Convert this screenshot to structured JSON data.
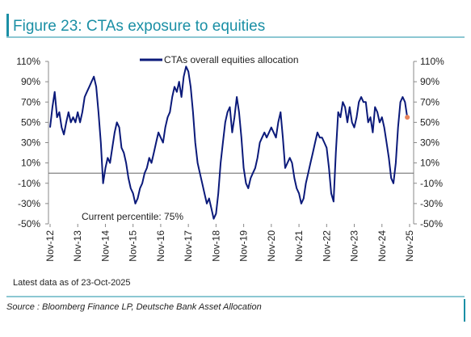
{
  "chart_data": {
    "type": "line",
    "title": "Figure 23: CTAs exposure to equities",
    "annotation": "Current percentile: 75%",
    "note": "Latest data as of 23-Oct-2025",
    "source": "Source : Bloomberg Finance LP, Deutsche Bank Asset Allocation",
    "categories": [
      "Nov-12",
      null,
      null,
      null,
      null,
      null,
      null,
      null,
      null,
      null,
      null,
      null,
      "Nov-13",
      null,
      null,
      null,
      null,
      null,
      null,
      null,
      null,
      null,
      null,
      null,
      "Nov-14",
      null,
      null,
      null,
      null,
      null,
      null,
      null,
      null,
      null,
      null,
      null,
      "Nov-15",
      null,
      null,
      null,
      null,
      null,
      null,
      null,
      null,
      null,
      null,
      null,
      "Nov-16",
      null,
      null,
      null,
      null,
      null,
      null,
      null,
      null,
      null,
      null,
      null,
      "Nov-17",
      null,
      null,
      null,
      null,
      null,
      null,
      null,
      null,
      null,
      null,
      null,
      "Nov-18",
      null,
      null,
      null,
      null,
      null,
      null,
      null,
      null,
      null,
      null,
      null,
      "Nov-19",
      null,
      null,
      null,
      null,
      null,
      null,
      null,
      null,
      null,
      null,
      null,
      "Nov-20",
      null,
      null,
      null,
      null,
      null,
      null,
      null,
      null,
      null,
      null,
      null,
      "Nov-21",
      null,
      null,
      null,
      null,
      null,
      null,
      null,
      null,
      null,
      null,
      null,
      "Nov-22",
      null,
      null,
      null,
      null,
      null,
      null,
      null,
      null,
      null,
      null,
      null,
      "Nov-23",
      null,
      null,
      null,
      null,
      null,
      null,
      null,
      null,
      null,
      null,
      null,
      "Nov-24",
      null,
      null,
      null,
      null,
      null,
      null,
      null,
      null,
      null,
      null,
      null,
      "Nov-25"
    ],
    "series": [
      {
        "name": "CTAs overall equities allocation",
        "color": "#0b1a7a",
        "values": [
          45,
          65,
          80,
          55,
          60,
          45,
          38,
          50,
          60,
          50,
          55,
          50,
          60,
          50,
          60,
          75,
          80,
          85,
          90,
          95,
          85,
          60,
          30,
          -10,
          5,
          15,
          10,
          25,
          40,
          50,
          45,
          25,
          20,
          10,
          -5,
          -15,
          -20,
          -30,
          -25,
          -15,
          -10,
          0,
          5,
          15,
          10,
          20,
          30,
          40,
          35,
          30,
          45,
          55,
          60,
          75,
          85,
          80,
          90,
          75,
          95,
          105,
          100,
          85,
          60,
          30,
          10,
          0,
          -10,
          -20,
          -30,
          -25,
          -35,
          -45,
          -40,
          -20,
          10,
          30,
          50,
          60,
          65,
          40,
          55,
          75,
          60,
          35,
          5,
          -10,
          -15,
          -5,
          0,
          5,
          15,
          30,
          35,
          40,
          35,
          40,
          45,
          40,
          35,
          50,
          60,
          35,
          5,
          10,
          15,
          10,
          -5,
          -15,
          -20,
          -30,
          -25,
          -10,
          0,
          10,
          20,
          30,
          40,
          35,
          35,
          30,
          25,
          5,
          -20,
          -28,
          20,
          60,
          55,
          70,
          65,
          50,
          65,
          50,
          45,
          55,
          70,
          75,
          70,
          70,
          50,
          55,
          40,
          65,
          60,
          50,
          55,
          45,
          30,
          15,
          -5,
          -10,
          10,
          45,
          70,
          75,
          70,
          55,
          null
        ]
      }
    ],
    "highlight_color": "#e8835a",
    "ylim": [
      -50,
      110
    ],
    "yticks": [
      {
        "value": -50,
        "label": "-50%"
      },
      {
        "value": -30,
        "label": "-30%"
      },
      {
        "value": -10,
        "label": "-10%"
      },
      {
        "value": 10,
        "label": "10%"
      },
      {
        "value": 30,
        "label": "30%"
      },
      {
        "value": 50,
        "label": "50%"
      },
      {
        "value": 70,
        "label": "70%"
      },
      {
        "value": 90,
        "label": "90%"
      },
      {
        "value": 110,
        "label": "110%"
      }
    ],
    "legend": "top"
  }
}
